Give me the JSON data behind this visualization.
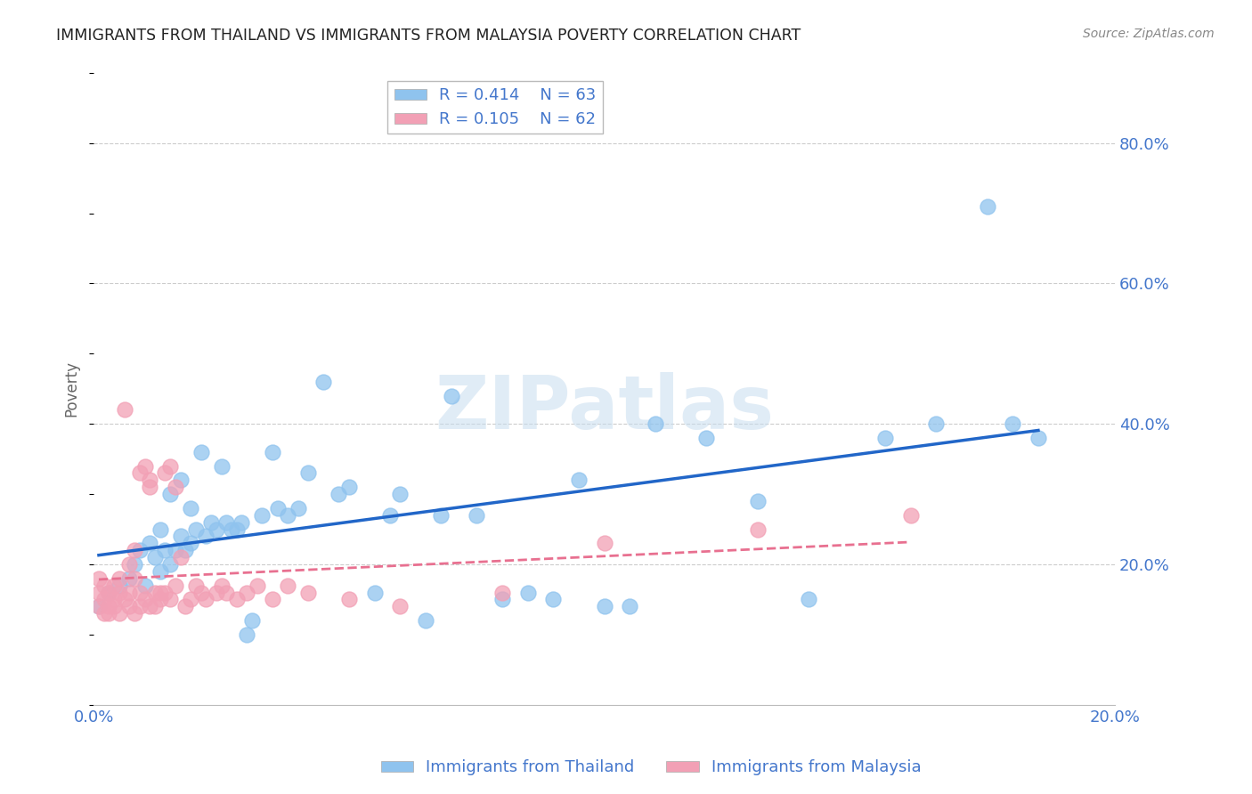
{
  "title": "IMMIGRANTS FROM THAILAND VS IMMIGRANTS FROM MALAYSIA POVERTY CORRELATION CHART",
  "source": "Source: ZipAtlas.com",
  "ylabel_label": "Poverty",
  "xlim": [
    0.0,
    0.2
  ],
  "ylim": [
    0.0,
    0.9
  ],
  "yticks": [
    0.2,
    0.4,
    0.6,
    0.8
  ],
  "ytick_labels": [
    "20.0%",
    "40.0%",
    "60.0%",
    "80.0%"
  ],
  "xticks": [
    0.0,
    0.05,
    0.1,
    0.15,
    0.2
  ],
  "xtick_labels": [
    "0.0%",
    "",
    "",
    "",
    "20.0%"
  ],
  "thailand_color": "#8FC3EE",
  "malaysia_color": "#F2A0B5",
  "trend_thailand_color": "#2166C8",
  "trend_malaysia_color": "#E87090",
  "R_thailand": 0.414,
  "N_thailand": 63,
  "R_malaysia": 0.105,
  "N_malaysia": 62,
  "background_color": "#FFFFFF",
  "watermark": "ZIPatlas",
  "title_color": "#222222",
  "axis_label_color": "#4477CC",
  "thailand_x": [
    0.001,
    0.003,
    0.005,
    0.007,
    0.008,
    0.009,
    0.01,
    0.011,
    0.012,
    0.013,
    0.013,
    0.014,
    0.015,
    0.015,
    0.016,
    0.017,
    0.017,
    0.018,
    0.019,
    0.019,
    0.02,
    0.021,
    0.022,
    0.023,
    0.024,
    0.025,
    0.026,
    0.027,
    0.028,
    0.029,
    0.03,
    0.031,
    0.033,
    0.035,
    0.036,
    0.038,
    0.04,
    0.042,
    0.045,
    0.048,
    0.05,
    0.055,
    0.058,
    0.06,
    0.065,
    0.068,
    0.07,
    0.075,
    0.08,
    0.085,
    0.09,
    0.095,
    0.1,
    0.105,
    0.11,
    0.12,
    0.13,
    0.14,
    0.155,
    0.165,
    0.175,
    0.18,
    0.185
  ],
  "thailand_y": [
    0.14,
    0.16,
    0.17,
    0.18,
    0.2,
    0.22,
    0.17,
    0.23,
    0.21,
    0.19,
    0.25,
    0.22,
    0.2,
    0.3,
    0.22,
    0.24,
    0.32,
    0.22,
    0.28,
    0.23,
    0.25,
    0.36,
    0.24,
    0.26,
    0.25,
    0.34,
    0.26,
    0.25,
    0.25,
    0.26,
    0.1,
    0.12,
    0.27,
    0.36,
    0.28,
    0.27,
    0.28,
    0.33,
    0.46,
    0.3,
    0.31,
    0.16,
    0.27,
    0.3,
    0.12,
    0.27,
    0.44,
    0.27,
    0.15,
    0.16,
    0.15,
    0.32,
    0.14,
    0.14,
    0.4,
    0.38,
    0.29,
    0.15,
    0.38,
    0.4,
    0.71,
    0.4,
    0.38
  ],
  "malaysia_x": [
    0.001,
    0.001,
    0.001,
    0.002,
    0.002,
    0.002,
    0.003,
    0.003,
    0.003,
    0.004,
    0.004,
    0.004,
    0.005,
    0.005,
    0.005,
    0.006,
    0.006,
    0.007,
    0.007,
    0.007,
    0.008,
    0.008,
    0.008,
    0.009,
    0.009,
    0.009,
    0.01,
    0.01,
    0.011,
    0.011,
    0.011,
    0.012,
    0.012,
    0.013,
    0.013,
    0.014,
    0.014,
    0.015,
    0.015,
    0.016,
    0.016,
    0.017,
    0.018,
    0.019,
    0.02,
    0.021,
    0.022,
    0.024,
    0.025,
    0.026,
    0.028,
    0.03,
    0.032,
    0.035,
    0.038,
    0.042,
    0.05,
    0.06,
    0.08,
    0.1,
    0.13,
    0.16
  ],
  "malaysia_y": [
    0.14,
    0.16,
    0.18,
    0.13,
    0.15,
    0.17,
    0.14,
    0.16,
    0.13,
    0.15,
    0.17,
    0.14,
    0.16,
    0.13,
    0.18,
    0.15,
    0.42,
    0.14,
    0.16,
    0.2,
    0.13,
    0.18,
    0.22,
    0.14,
    0.16,
    0.33,
    0.15,
    0.34,
    0.14,
    0.32,
    0.31,
    0.16,
    0.14,
    0.16,
    0.15,
    0.33,
    0.16,
    0.15,
    0.34,
    0.31,
    0.17,
    0.21,
    0.14,
    0.15,
    0.17,
    0.16,
    0.15,
    0.16,
    0.17,
    0.16,
    0.15,
    0.16,
    0.17,
    0.15,
    0.17,
    0.16,
    0.15,
    0.14,
    0.16,
    0.23,
    0.25,
    0.27
  ]
}
